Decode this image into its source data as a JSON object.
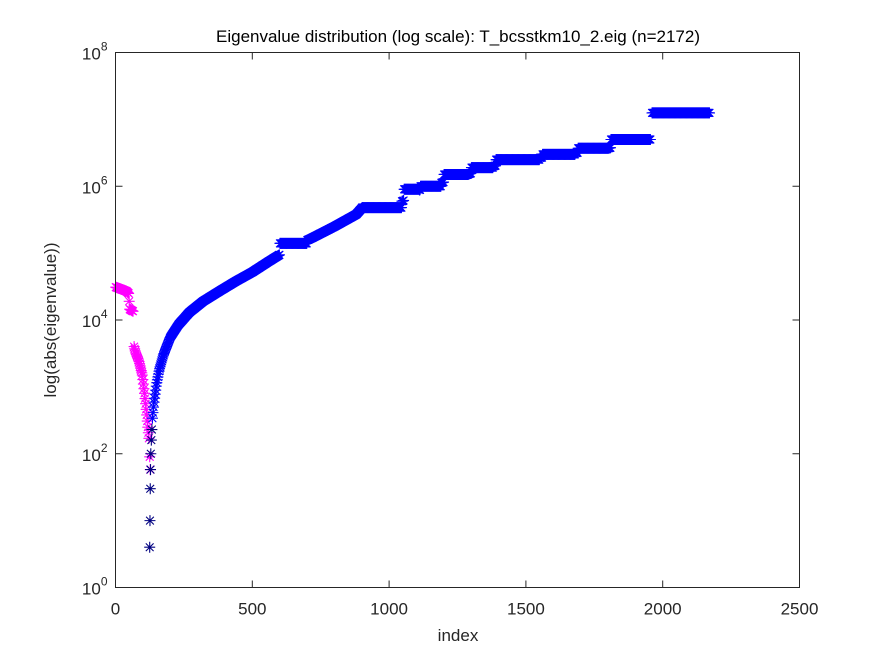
{
  "chart_data": {
    "type": "scatter",
    "title": "Eigenvalue distribution (log scale): T_bcsstkm10_2.eig (n=2172)",
    "xlabel": "index",
    "ylabel": "log(abs(eigenvalue))",
    "xlim": [
      0,
      2500
    ],
    "ylim": [
      1,
      100000000
    ],
    "yscale": "log",
    "x_ticks": [
      {
        "value": 0,
        "label": "0"
      },
      {
        "value": 500,
        "label": "500"
      },
      {
        "value": 1000,
        "label": "1000"
      },
      {
        "value": 1500,
        "label": "1500"
      },
      {
        "value": 2000,
        "label": "2000"
      },
      {
        "value": 2500,
        "label": "2500"
      }
    ],
    "y_ticks": [
      {
        "value": 1,
        "base": "10",
        "exp": "0"
      },
      {
        "value": 100,
        "base": "10",
        "exp": "2"
      },
      {
        "value": 10000,
        "base": "10",
        "exp": "4"
      },
      {
        "value": 1000000,
        "base": "10",
        "exp": "6"
      },
      {
        "value": 100000000,
        "base": "10",
        "exp": "8"
      }
    ],
    "grid": false,
    "marker": "*",
    "series": [
      {
        "sign": "negative",
        "color": "#ff00ff",
        "x_range": [
          1,
          128
        ],
        "points": [
          [
            1,
            31000
          ],
          [
            10,
            30000
          ],
          [
            20,
            29000
          ],
          [
            30,
            28000
          ],
          [
            40,
            27000
          ],
          [
            48,
            25000
          ],
          [
            52,
            14500
          ],
          [
            58,
            14000
          ],
          [
            64,
            13500
          ],
          [
            68,
            4000
          ],
          [
            74,
            3200
          ],
          [
            80,
            2800
          ],
          [
            86,
            2400
          ],
          [
            92,
            1900
          ],
          [
            98,
            1500
          ],
          [
            102,
            1100
          ],
          [
            106,
            800
          ],
          [
            110,
            560
          ],
          [
            114,
            380
          ],
          [
            118,
            250
          ],
          [
            122,
            170
          ],
          [
            125,
            90
          ],
          [
            127,
            58
          ]
        ]
      },
      {
        "sign": "positive",
        "color": "#0000ff",
        "outlier_color": "#000080",
        "x_range": [
          125,
          2172
        ],
        "outliers": [
          [
            125,
            4
          ],
          [
            126,
            10
          ],
          [
            127,
            30
          ],
          [
            128,
            58
          ],
          [
            129,
            100
          ],
          [
            131,
            160
          ],
          [
            133,
            230
          ]
        ],
        "curve": [
          [
            135,
            340
          ],
          [
            140,
            550
          ],
          [
            150,
            1100
          ],
          [
            160,
            1800
          ],
          [
            175,
            3000
          ],
          [
            200,
            5500
          ],
          [
            230,
            8500
          ],
          [
            270,
            13000
          ],
          [
            320,
            19000
          ],
          [
            380,
            27000
          ],
          [
            440,
            38000
          ],
          [
            500,
            52000
          ],
          [
            560,
            75000
          ],
          [
            640,
            120000
          ],
          [
            720,
            170000
          ],
          [
            800,
            250000
          ],
          [
            880,
            380000
          ],
          [
            900,
            470000
          ],
          [
            1050,
            600000
          ],
          [
            1100,
            850000
          ],
          [
            1250,
            1350000
          ],
          [
            1400,
            2100000
          ],
          [
            1500,
            2500000
          ],
          [
            1650,
            3000000
          ],
          [
            1800,
            3700000
          ],
          [
            1950,
            5000000
          ]
        ],
        "plateaus": [
          {
            "x0": 600,
            "x1": 700,
            "y": 140000
          },
          {
            "x0": 900,
            "x1": 1045,
            "y": 480000
          },
          {
            "x0": 1055,
            "x1": 1110,
            "y": 900000
          },
          {
            "x0": 1115,
            "x1": 1190,
            "y": 1000000
          },
          {
            "x0": 1200,
            "x1": 1290,
            "y": 1500000
          },
          {
            "x0": 1300,
            "x1": 1380,
            "y": 1900000
          },
          {
            "x0": 1390,
            "x1": 1550,
            "y": 2500000
          },
          {
            "x0": 1560,
            "x1": 1680,
            "y": 3000000
          },
          {
            "x0": 1690,
            "x1": 1800,
            "y": 3700000
          },
          {
            "x0": 1810,
            "x1": 1955,
            "y": 5000000
          },
          {
            "x0": 1960,
            "x1": 2172,
            "y": 12500000
          }
        ]
      }
    ]
  }
}
